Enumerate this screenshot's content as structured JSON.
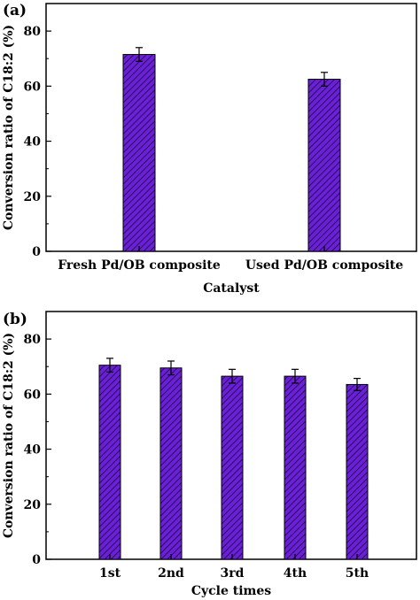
{
  "colors": {
    "bar_fill": "#6a1fd8",
    "hatch": "#1a0a33",
    "axis": "#000000"
  },
  "chart_data": [
    {
      "panel_label": "(a)",
      "type": "bar",
      "categories": [
        "Fresh Pd/OB composite",
        "Used Pd/OB composite"
      ],
      "values": [
        71.5,
        62.5
      ],
      "errors": [
        2.5,
        2.5
      ],
      "xlabel": "Catalyst",
      "ylabel": "Conversion ratio of C18:2 (%)",
      "ylim": [
        0,
        90
      ],
      "yticks": [
        0,
        20,
        40,
        60,
        80
      ],
      "ytick_labels": [
        "0",
        "20",
        "40",
        "60",
        "80"
      ],
      "grid": false,
      "hatch": "diagonal"
    },
    {
      "panel_label": "(b)",
      "type": "bar",
      "categories": [
        "1st",
        "2nd",
        "3rd",
        "4th",
        "5th"
      ],
      "values": [
        70.5,
        69.5,
        66.5,
        66.5,
        63.5
      ],
      "errors": [
        2.5,
        2.5,
        2.5,
        2.5,
        2.2
      ],
      "xlabel": "Cycle times",
      "ylabel": "Conversion ratio of C18:2 (%)",
      "ylim": [
        0,
        90
      ],
      "yticks": [
        0,
        20,
        40,
        60,
        80
      ],
      "ytick_labels": [
        "0",
        "20",
        "40",
        "60",
        "80"
      ],
      "grid": false,
      "hatch": "diagonal"
    }
  ]
}
